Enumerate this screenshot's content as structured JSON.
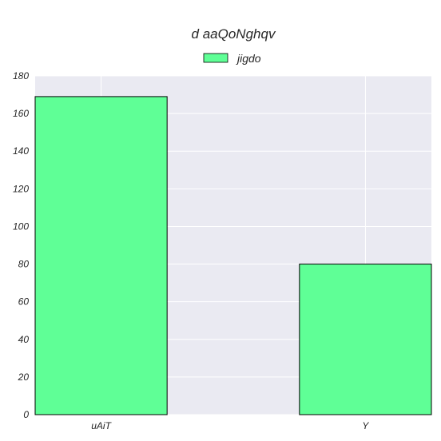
{
  "chart_data": {
    "type": "bar",
    "title": "d aaQoNghqv",
    "categories": [
      "uAiT",
      "Y"
    ],
    "series": [
      {
        "name": "jigdo",
        "values": [
          169,
          80
        ]
      }
    ],
    "xlabel": "",
    "ylabel": "",
    "ylim": [
      0,
      180
    ],
    "yticks": [
      0,
      20,
      40,
      60,
      80,
      100,
      120,
      140,
      160,
      180
    ],
    "grid": true,
    "legend": "top-center",
    "colors": {
      "bar_fill": "#5fff96",
      "bar_edge": "#000000",
      "plot_bg": "#eaeaf2",
      "grid": "#ffffff",
      "text": "#262626"
    }
  }
}
